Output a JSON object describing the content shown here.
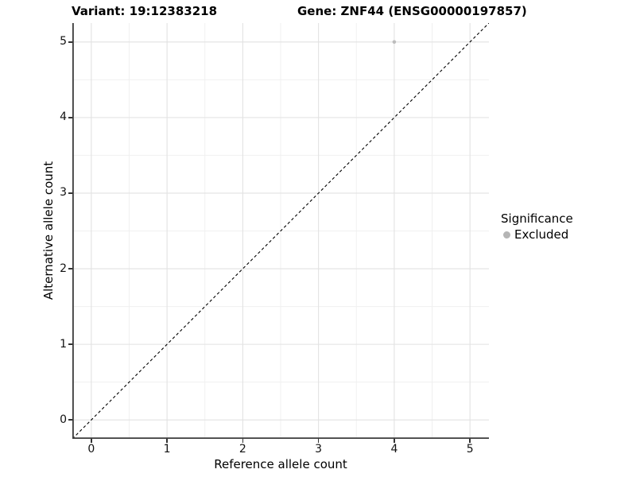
{
  "chart_data": {
    "type": "scatter",
    "title_left": "Variant: 19:12383218",
    "title_right": "Gene: ZNF44 (ENSG00000197857)",
    "xlabel": "Reference allele count",
    "ylabel": "Alternative allele count",
    "xlim": [
      -0.25,
      5.25
    ],
    "ylim": [
      -0.25,
      5.25
    ],
    "xticks": [
      0,
      1,
      2,
      3,
      4,
      5
    ],
    "yticks": [
      0,
      1,
      2,
      3,
      4,
      5
    ],
    "grid": "major and minor on, white background",
    "points": [
      {
        "x": 4,
        "y": 5,
        "significance": "Excluded"
      }
    ],
    "reference_line": {
      "type": "identity y=x",
      "style": "dashed",
      "color": "#000000"
    },
    "legend": {
      "title": "Significance",
      "position": "right",
      "entries": [
        {
          "label": "Excluded",
          "color": "#b5b5b5"
        }
      ]
    },
    "colors": {
      "point": "#bdbdbd",
      "major_grid": "#e2e2e2",
      "minor_grid": "#f0f0f0",
      "axis_line": "#3c3c3c",
      "tick_mark": "#333333",
      "background": "#ffffff"
    }
  }
}
